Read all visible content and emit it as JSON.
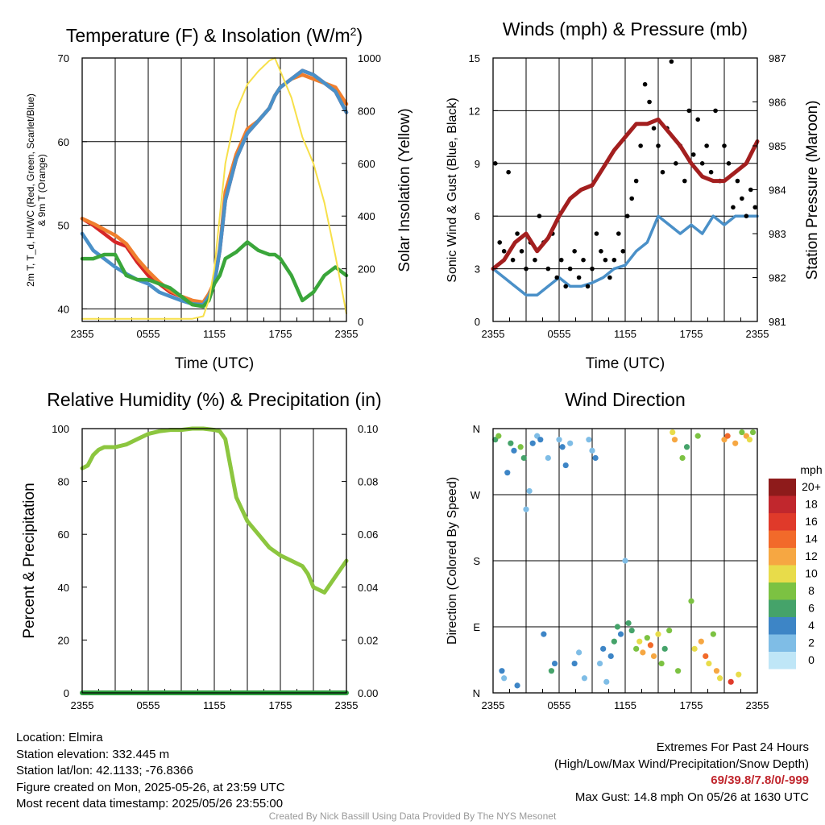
{
  "chart_data": [
    {
      "type": "line",
      "title": "Temperature (F) & Insolation (W/m²)",
      "xlabel": "Time (UTC)",
      "ylabel_left": "2m T, T_d, HI/WC (Red, Green, Scarlet/Blue) & 9m T (Orange)",
      "ylabel_right": "Solar Insolation (Yellow)",
      "ylim": [
        38.5,
        70
      ],
      "ylim_right": [
        0,
        1000
      ],
      "xticks": [
        "2355",
        "0555",
        "1155",
        "1755",
        "2355"
      ],
      "yticks_left": [
        "40",
        "50",
        "60",
        "70"
      ],
      "yticks_right": [
        "0",
        "200",
        "400",
        "600",
        "800",
        "1000"
      ],
      "x_hours": [
        0,
        1,
        2,
        3,
        4,
        5,
        6,
        7,
        8,
        9,
        10,
        11,
        11.5,
        12,
        12.5,
        13,
        14,
        15,
        16,
        17,
        17.5,
        18,
        19,
        20,
        21,
        22,
        23,
        24
      ],
      "series": [
        {
          "color": "#d62728",
          "values": [
            50.8,
            50,
            49,
            48,
            47.5,
            45.6,
            44,
            43,
            42,
            41.5,
            41,
            40.5,
            41.5,
            43,
            47,
            53,
            58,
            61,
            62.5,
            64,
            65.5,
            66.5,
            67.5,
            68.5,
            68,
            67,
            66,
            63.5
          ]
        },
        {
          "color": "#f07f2e",
          "values": [
            50.8,
            50.2,
            49.5,
            48.8,
            47.8,
            46,
            44.5,
            43.2,
            42.2,
            41.5,
            41,
            40.8,
            41.8,
            43.2,
            47.2,
            54,
            58.5,
            61.5,
            62.5,
            64,
            65.5,
            66.5,
            67.5,
            68,
            67.5,
            67,
            66.5,
            64.5
          ]
        },
        {
          "color": "#4a90c8",
          "values": [
            49,
            47,
            46,
            45,
            44.2,
            43.5,
            43,
            42,
            41.5,
            41,
            40.6,
            40.5,
            41.5,
            43,
            47,
            53,
            58,
            61,
            62.5,
            64,
            65.5,
            66.5,
            67.5,
            68.5,
            68,
            67,
            66,
            63.5
          ]
        },
        {
          "color": "#3aa63a",
          "values": [
            46,
            46,
            46.5,
            46.5,
            44,
            43.5,
            43.5,
            43,
            42.5,
            41.5,
            40.5,
            40.3,
            41,
            43,
            44,
            46,
            46.8,
            48,
            47,
            46.5,
            46.5,
            46,
            44,
            41,
            42,
            44,
            45,
            44
          ]
        },
        {
          "color": "#f7e04a",
          "values": [
            10,
            10,
            10,
            10,
            10,
            10,
            10,
            10,
            10,
            10,
            10,
            20,
            80,
            200,
            400,
            600,
            800,
            900,
            950,
            990,
            1000,
            950,
            850,
            700,
            600,
            450,
            250,
            30
          ]
        }
      ]
    },
    {
      "type": "line",
      "title": "Winds (mph) & Pressure (mb)",
      "xlabel": "Time (UTC)",
      "ylabel_left": "Sonic Wind & Gust (Blue, Black)",
      "ylabel_right": "Station Pressure (Maroon)",
      "ylim": [
        0,
        15
      ],
      "ylim_right": [
        981,
        987
      ],
      "xticks": [
        "2355",
        "0555",
        "1155",
        "1755",
        "2355"
      ],
      "yticks_left": [
        "0",
        "3",
        "6",
        "9",
        "12",
        "15"
      ],
      "yticks_right": [
        "981",
        "982",
        "983",
        "984",
        "985",
        "986",
        "987"
      ],
      "x_hours": [
        0,
        1,
        2,
        3,
        4,
        5,
        6,
        7,
        8,
        9,
        10,
        11,
        12,
        13,
        14,
        15,
        16,
        17,
        18,
        19,
        20,
        21,
        22,
        23,
        24
      ],
      "series": [
        {
          "color": "#4a90c8",
          "values": [
            3,
            2.5,
            2,
            1.5,
            1.5,
            2,
            2.5,
            2,
            2,
            2.2,
            2.5,
            3,
            3.2,
            4,
            4.5,
            6,
            5.5,
            5,
            5.5,
            5,
            6,
            5.5,
            6,
            6,
            6
          ]
        },
        {
          "color": "#a31f1f",
          "values": [
            982.2,
            982.4,
            982.8,
            983.0,
            982.6,
            982.9,
            983.4,
            983.8,
            984.0,
            984.1,
            984.5,
            984.9,
            985.2,
            985.5,
            985.5,
            985.6,
            985.3,
            985.0,
            984.6,
            984.3,
            984.2,
            984.2,
            984.4,
            984.6,
            985.1
          ]
        }
      ],
      "gust_points_mph": [
        9,
        4.5,
        4,
        8.5,
        3.5,
        5,
        4,
        3,
        4.5,
        3.5,
        6,
        4.5,
        3,
        5,
        2.5,
        3.5,
        2,
        3,
        4,
        2.5,
        3.5,
        2,
        3,
        5,
        4,
        3.5,
        2.5,
        3.5,
        5,
        4,
        6,
        7,
        8,
        10,
        13.5,
        12.5,
        11,
        10,
        8.5,
        11,
        14.8,
        9,
        10,
        8,
        12,
        9.5,
        11.5,
        9,
        10,
        8.5,
        12,
        8,
        10,
        9,
        6.5,
        8,
        7,
        6,
        7.5,
        6.5
      ]
    },
    {
      "type": "line",
      "title": "Relative Humidity (%) & Precipitation (in)",
      "ylabel_left": "Percent & Precipitation",
      "ylim": [
        0,
        100
      ],
      "ylim_right": [
        0,
        0.1
      ],
      "xticks": [
        "2355",
        "0555",
        "1155",
        "1755",
        "2355"
      ],
      "yticks_left": [
        "0",
        "20",
        "40",
        "60",
        "80",
        "100"
      ],
      "yticks_right": [
        "0.00",
        "0.02",
        "0.04",
        "0.06",
        "0.08",
        "0.10"
      ],
      "x_hours": [
        0,
        0.5,
        1,
        1.5,
        2,
        3,
        4,
        5,
        6,
        7,
        8,
        9,
        10,
        11,
        12,
        12.5,
        13,
        13.5,
        14,
        15,
        16,
        17,
        18,
        19,
        20,
        20.5,
        21,
        22,
        23,
        24
      ],
      "series": [
        {
          "color": "#8cc63f",
          "values": [
            85,
            86,
            90,
            92,
            93,
            93,
            94,
            96,
            98,
            99,
            99.5,
            99.5,
            100,
            100,
            99.5,
            99,
            96,
            85,
            74,
            65,
            60,
            55,
            52,
            50,
            48,
            45,
            40,
            38,
            44,
            50
          ]
        },
        {
          "color": "#2e9e3e",
          "values": [
            0,
            0,
            0,
            0,
            0,
            0,
            0,
            0,
            0,
            0,
            0,
            0,
            0,
            0,
            0,
            0,
            0,
            0,
            0,
            0,
            0,
            0,
            0,
            0,
            0,
            0,
            0,
            0,
            0,
            0
          ]
        }
      ]
    },
    {
      "type": "scatter",
      "title": "Wind Direction",
      "ylabel_left": "Direction (Colored By Speed)",
      "xticks": [
        "2355",
        "0555",
        "1155",
        "1755",
        "2355"
      ],
      "yticks_left": [
        "N",
        "E",
        "S",
        "W",
        "N"
      ],
      "ylim": [
        0,
        360
      ],
      "legend": {
        "title": "mph",
        "labels": [
          "0",
          "2",
          "4",
          "6",
          "8",
          "10",
          "12",
          "14",
          "16",
          "18",
          "20+"
        ],
        "colors": [
          "#bfe6f7",
          "#7fbde6",
          "#3d85c6",
          "#45a36a",
          "#7cc242",
          "#e8dc4a",
          "#f6a742",
          "#f26a2a",
          "#e03a2a",
          "#c1272d",
          "#8e1b1b"
        ],
        "placement": "right"
      },
      "points": [
        [
          0.2,
          345,
          3
        ],
        [
          0.5,
          350,
          4
        ],
        [
          0.8,
          30,
          2
        ],
        [
          1.0,
          20,
          1
        ],
        [
          1.3,
          300,
          2
        ],
        [
          1.6,
          340,
          3
        ],
        [
          1.9,
          330,
          2
        ],
        [
          2.2,
          10,
          2
        ],
        [
          2.5,
          335,
          4
        ],
        [
          2.8,
          320,
          3
        ],
        [
          3.0,
          250,
          1
        ],
        [
          3.3,
          275,
          1
        ],
        [
          3.6,
          340,
          2
        ],
        [
          4.0,
          350,
          1
        ],
        [
          4.3,
          345,
          2
        ],
        [
          4.6,
          80,
          2
        ],
        [
          5.0,
          320,
          1
        ],
        [
          5.3,
          30,
          3
        ],
        [
          5.6,
          40,
          2
        ],
        [
          6.0,
          345,
          1
        ],
        [
          6.3,
          335,
          2
        ],
        [
          6.6,
          310,
          2
        ],
        [
          7.0,
          340,
          1
        ],
        [
          7.4,
          40,
          2
        ],
        [
          7.8,
          55,
          1
        ],
        [
          8.3,
          20,
          1
        ],
        [
          8.7,
          345,
          1
        ],
        [
          9.0,
          330,
          1
        ],
        [
          9.3,
          320,
          2
        ],
        [
          9.7,
          40,
          1
        ],
        [
          10.0,
          60,
          2
        ],
        [
          10.3,
          15,
          1
        ],
        [
          10.7,
          50,
          2
        ],
        [
          11.0,
          70,
          3
        ],
        [
          11.3,
          90,
          3
        ],
        [
          11.6,
          80,
          2
        ],
        [
          12.0,
          180,
          1
        ],
        [
          12.3,
          95,
          3
        ],
        [
          12.6,
          85,
          3
        ],
        [
          13.0,
          60,
          4
        ],
        [
          13.3,
          70,
          5
        ],
        [
          13.6,
          55,
          6
        ],
        [
          14.0,
          75,
          4
        ],
        [
          14.3,
          65,
          7
        ],
        [
          14.6,
          50,
          6
        ],
        [
          15.0,
          80,
          5
        ],
        [
          15.3,
          40,
          4
        ],
        [
          15.6,
          60,
          3
        ],
        [
          16.0,
          85,
          4
        ],
        [
          16.3,
          355,
          5
        ],
        [
          16.5,
          345,
          6
        ],
        [
          16.8,
          30,
          4
        ],
        [
          17.2,
          320,
          4
        ],
        [
          17.6,
          335,
          3
        ],
        [
          18.0,
          125,
          4
        ],
        [
          18.3,
          60,
          5
        ],
        [
          18.6,
          350,
          4
        ],
        [
          18.9,
          70,
          6
        ],
        [
          19.3,
          50,
          7
        ],
        [
          19.6,
          40,
          5
        ],
        [
          20.0,
          80,
          4
        ],
        [
          20.3,
          30,
          6
        ],
        [
          20.6,
          20,
          5
        ],
        [
          21.0,
          345,
          6
        ],
        [
          21.3,
          350,
          7
        ],
        [
          21.6,
          15,
          8
        ],
        [
          22.0,
          340,
          6
        ],
        [
          22.3,
          25,
          5
        ],
        [
          22.6,
          355,
          4
        ],
        [
          23.0,
          350,
          6
        ],
        [
          23.3,
          345,
          5
        ],
        [
          23.6,
          355,
          4
        ]
      ]
    }
  ],
  "info_left": [
    "Location: Elmira",
    "Station elevation: 332.445 m",
    "Station lat/lon: 42.1133; -76.8366",
    "Figure created on Mon, 2025-05-26, at 23:59 UTC",
    "Most recent data timestamp: 2025/05/26 23:55:00"
  ],
  "extremes": {
    "title": "Extremes For Past 24 Hours",
    "subtitle": "(High/Low/Max Wind/Precipitation/Snow Depth)",
    "values": "69/39.8/7.8/0/-999",
    "max_gust": "Max Gust: 14.8 mph On 05/26 at 1630 UTC"
  },
  "credit": "Created By Nick Bassill Using Data Provided By The NYS Mesonet"
}
